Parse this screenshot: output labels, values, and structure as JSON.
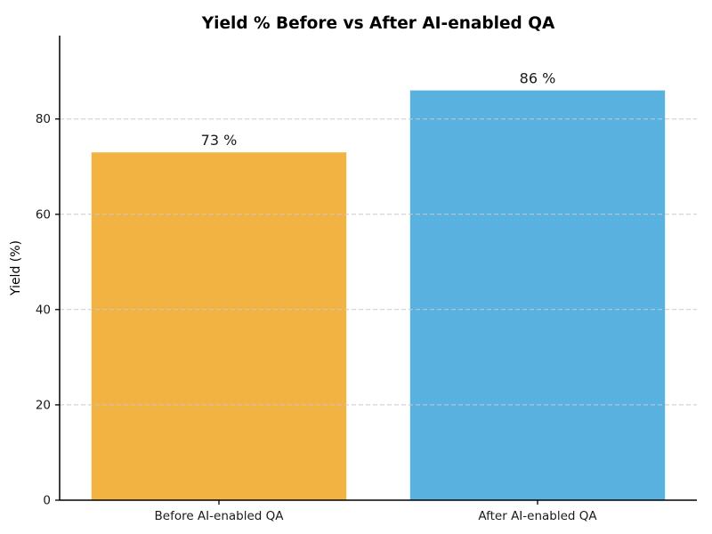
{
  "chart_data": {
    "type": "bar",
    "title": "Yield % Before vs After AI-enabled QA",
    "categories": [
      "Before AI-enabled QA",
      "After AI-enabled QA"
    ],
    "values": [
      73,
      86
    ],
    "bar_labels": [
      "73 %",
      "86 %"
    ],
    "bar_colors": [
      "#f2b343",
      "#59b1df"
    ],
    "xlabel": "",
    "ylabel": "Yield (%)",
    "ylim": [
      0,
      97.5
    ],
    "yticks": [
      0,
      20,
      40,
      60,
      80
    ],
    "grid": "horizontal-dashed",
    "grid_color": "#c9c9c9",
    "axis_color": "#000000",
    "text_color": "#1a1a1a",
    "legend": "none",
    "background_color": "#ffffff"
  }
}
